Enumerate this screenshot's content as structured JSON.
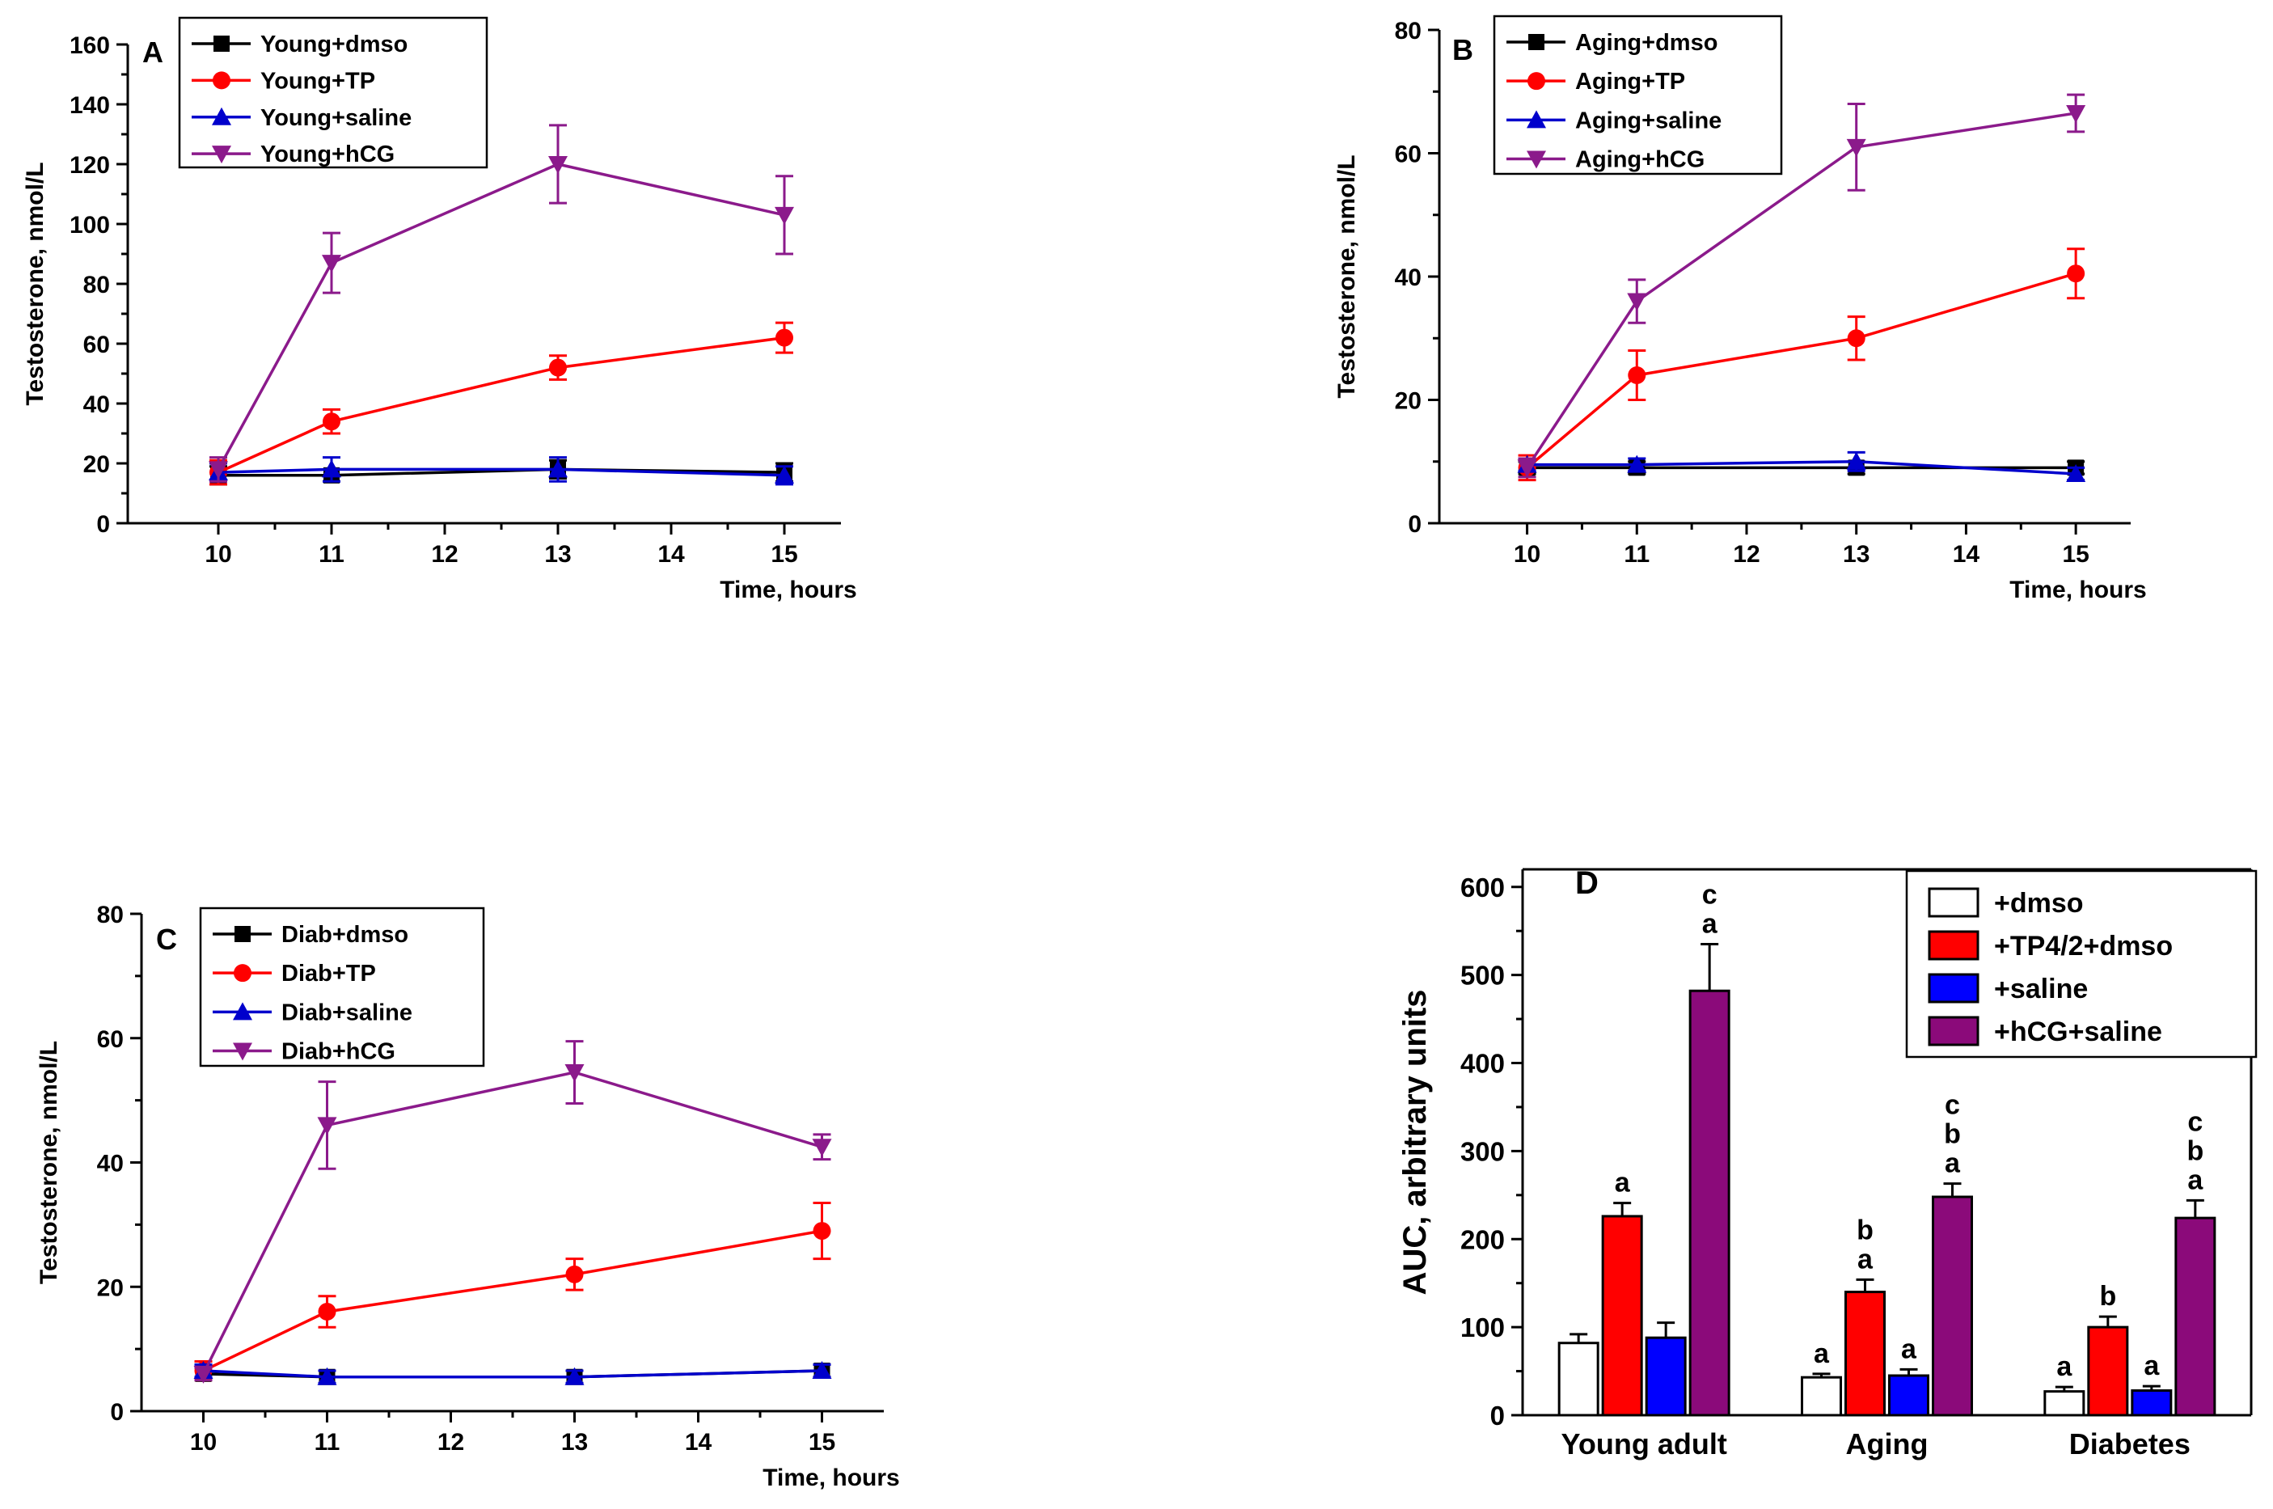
{
  "colors": {
    "dmso": "#000000",
    "tp": "#ff0000",
    "saline": "#0000cc",
    "hcg": "#8b1a8b",
    "bar_dmso": "#ffffff",
    "bar_tp": "#ff0000",
    "bar_saline": "#0000ff",
    "bar_hcg": "#8b0a7a"
  },
  "chart_data": [
    {
      "id": "A",
      "type": "line",
      "panel_label": "A",
      "title": "",
      "xlabel": "Time, hours",
      "ylabel": "Testosterone, nmol/L",
      "xlim": [
        9.2,
        15.5
      ],
      "ylim": [
        0,
        160
      ],
      "x_ticks": [
        10,
        11,
        12,
        13,
        14,
        15
      ],
      "y_ticks": [
        0,
        20,
        40,
        60,
        80,
        100,
        120,
        140,
        160
      ],
      "legend_position": "top-left",
      "x": [
        10,
        11,
        13,
        15
      ],
      "series": [
        {
          "name": "Young+dmso",
          "key": "dmso",
          "marker": "square",
          "values": [
            16,
            16,
            18,
            17
          ],
          "errors": [
            3,
            2,
            3,
            3
          ]
        },
        {
          "name": "Young+TP",
          "key": "tp",
          "marker": "circle",
          "values": [
            17,
            34,
            52,
            62
          ],
          "errors": [
            4,
            4,
            4,
            5
          ]
        },
        {
          "name": "Young+saline",
          "key": "saline",
          "marker": "triangle-up",
          "values": [
            17,
            18,
            18,
            16
          ],
          "errors": [
            3,
            4,
            4,
            3
          ]
        },
        {
          "name": "Young+hCG",
          "key": "hcg",
          "marker": "triangle-down",
          "values": [
            18,
            87,
            120,
            103
          ],
          "errors": [
            4,
            10,
            13,
            13
          ]
        }
      ]
    },
    {
      "id": "B",
      "type": "line",
      "panel_label": "B",
      "title": "",
      "xlabel": "Time, hours",
      "ylabel": "Testosterone, nmol/L",
      "xlim": [
        9.2,
        15.5
      ],
      "ylim": [
        0,
        80
      ],
      "x_ticks": [
        10,
        11,
        12,
        13,
        14,
        15
      ],
      "y_ticks": [
        0,
        20,
        40,
        60,
        80
      ],
      "legend_position": "top-left",
      "x": [
        10,
        11,
        13,
        15
      ],
      "series": [
        {
          "name": "Aging+dmso",
          "key": "dmso",
          "marker": "square",
          "values": [
            9,
            9,
            9,
            9
          ],
          "errors": [
            1,
            1,
            1,
            1
          ]
        },
        {
          "name": "Aging+TP",
          "key": "tp",
          "marker": "circle",
          "values": [
            9,
            24,
            30,
            40.5
          ],
          "errors": [
            2,
            4,
            3.5,
            4
          ]
        },
        {
          "name": "Aging+saline",
          "key": "saline",
          "marker": "triangle-up",
          "values": [
            9.5,
            9.5,
            10,
            8
          ],
          "errors": [
            1,
            1,
            1.5,
            1
          ]
        },
        {
          "name": "Aging+hCG",
          "key": "hcg",
          "marker": "triangle-down",
          "values": [
            9,
            36,
            61,
            66.5
          ],
          "errors": [
            1.5,
            3.5,
            7,
            3
          ]
        }
      ]
    },
    {
      "id": "C",
      "type": "line",
      "panel_label": "C",
      "title": "",
      "xlabel": "Time, hours",
      "ylabel": "Testosterone, nmol/L",
      "xlim": [
        9.5,
        15.5
      ],
      "ylim": [
        0,
        80
      ],
      "x_ticks": [
        10,
        11,
        12,
        13,
        14,
        15
      ],
      "y_ticks": [
        0,
        20,
        40,
        60,
        80
      ],
      "legend_position": "top-left",
      "x": [
        10,
        11,
        13,
        15
      ],
      "series": [
        {
          "name": "Diab+dmso",
          "key": "dmso",
          "marker": "square",
          "values": [
            6,
            5.5,
            5.5,
            6.5
          ],
          "errors": [
            1,
            1,
            1,
            1
          ]
        },
        {
          "name": "Diab+TP",
          "key": "tp",
          "marker": "circle",
          "values": [
            6.5,
            16,
            22,
            29
          ],
          "errors": [
            1.5,
            2.5,
            2.5,
            4.5
          ]
        },
        {
          "name": "Diab+saline",
          "key": "saline",
          "marker": "triangle-up",
          "values": [
            6.5,
            5.5,
            5.5,
            6.5
          ],
          "errors": [
            1,
            1,
            1,
            1
          ]
        },
        {
          "name": "Diab+hCG",
          "key": "hcg",
          "marker": "triangle-down",
          "values": [
            6,
            46,
            54.5,
            42.5
          ],
          "errors": [
            1,
            7,
            5,
            2
          ]
        }
      ]
    },
    {
      "id": "D",
      "type": "bar",
      "panel_label": "D",
      "title": "",
      "xlabel": "",
      "ylabel": "AUC, arbitrary units",
      "ylim": [
        0,
        620
      ],
      "y_ticks": [
        0,
        100,
        200,
        300,
        400,
        500,
        600
      ],
      "legend_position": "top-right",
      "categories": [
        "Young adult",
        "Aging",
        "Diabetes"
      ],
      "series": [
        {
          "name": "+dmso",
          "key": "bar_dmso",
          "values": [
            82,
            43,
            27
          ],
          "errors": [
            10,
            4,
            5
          ],
          "annotations": [
            "",
            "a",
            "a"
          ]
        },
        {
          "name": "+TP4/2+dmso",
          "key": "bar_tp",
          "values": [
            226,
            140,
            100
          ],
          "errors": [
            15,
            14,
            12
          ],
          "annotations": [
            "a",
            "ba",
            "b"
          ]
        },
        {
          "name": "+saline",
          "key": "bar_saline",
          "values": [
            88,
            45,
            28
          ],
          "errors": [
            17,
            7,
            5
          ],
          "annotations": [
            "",
            "a",
            "a"
          ]
        },
        {
          "name": "+hCG+saline",
          "key": "bar_hcg",
          "values": [
            482,
            248,
            224
          ],
          "errors": [
            53,
            15,
            20
          ],
          "annotations": [
            "ca",
            "cba",
            "cba"
          ]
        }
      ]
    }
  ]
}
